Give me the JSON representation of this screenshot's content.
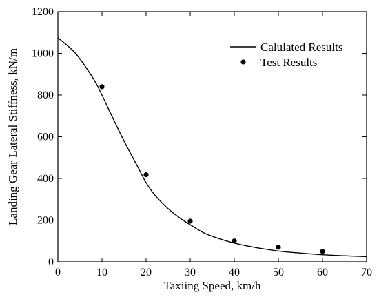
{
  "chart_data": {
    "type": "line",
    "xlabel": "Taxiing Speed, km/h",
    "ylabel": "Landing Gear Lateral Stiffness, kN/m",
    "xlim": [
      0,
      70
    ],
    "ylim": [
      0,
      1200
    ],
    "xticks": [
      0,
      10,
      20,
      30,
      40,
      50,
      60,
      70
    ],
    "yticks": [
      0,
      200,
      400,
      600,
      800,
      1000,
      1200
    ],
    "grid": false,
    "legend_position": "top-right",
    "series": [
      {
        "name": "Calulated Results",
        "style": "line",
        "color": "#000000",
        "x": [
          0,
          4,
          8,
          10,
          12,
          15,
          18,
          20,
          22,
          25,
          28,
          30,
          33,
          36,
          40,
          45,
          50,
          55,
          60,
          65,
          70
        ],
        "y": [
          1075,
          1000,
          880,
          800,
          710,
          580,
          460,
          380,
          320,
          255,
          205,
          178,
          140,
          115,
          90,
          68,
          52,
          42,
          34,
          29,
          25
        ]
      },
      {
        "name": "Test Results",
        "style": "scatter",
        "color": "#000000",
        "x": [
          10,
          20,
          30,
          40,
          50,
          60
        ],
        "y": [
          840,
          418,
          195,
          100,
          70,
          50
        ]
      }
    ]
  }
}
